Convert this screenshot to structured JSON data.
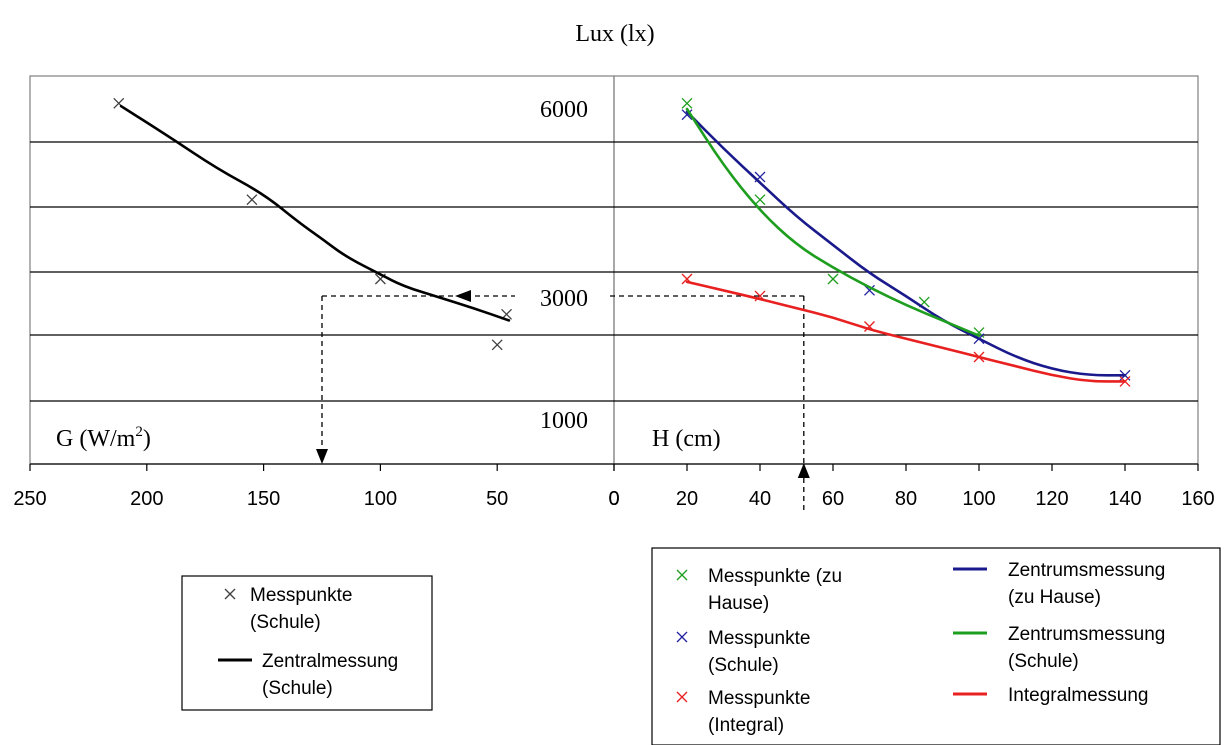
{
  "chart_data": {
    "type": "scatter",
    "title": "Lux (lx)",
    "y_value_labels": [
      "6000",
      "3000",
      "1000"
    ],
    "left_panel": {
      "axis_label": "G (W/m",
      "axis_label_superscript": "2",
      "axis_label_close": ")",
      "xlim": [
        250,
        0
      ],
      "x_ticks": [
        "250",
        "200",
        "150",
        "100",
        "50",
        "0"
      ],
      "series": [
        {
          "name": "Messpunkte (Schule)",
          "kind": "points",
          "color": "#404040",
          "points": [
            [
              212,
              6400
            ],
            [
              155,
              4700
            ],
            [
              100,
              3300
            ],
            [
              46,
              2700
            ],
            [
              50,
              2200
            ]
          ]
        },
        {
          "name": "Zentralmessung (Schule)",
          "kind": "line",
          "color": "#000000",
          "points": [
            [
              211,
              6350
            ],
            [
              190,
              5800
            ],
            [
              170,
              5250
            ],
            [
              150,
              4800
            ],
            [
              135,
              4300
            ],
            [
              125,
              4010
            ],
            [
              115,
              3700
            ],
            [
              100,
              3380
            ],
            [
              90,
              3170
            ],
            [
              75,
              2980
            ],
            [
              60,
              2800
            ],
            [
              45,
              2600
            ]
          ]
        }
      ],
      "legend": [
        {
          "label_lines": [
            "Messpunkte",
            "(Schule)"
          ],
          "kind": "points",
          "color": "#404040"
        },
        {
          "label_lines": [
            "Zentralmessung",
            "(Schule)"
          ],
          "kind": "line",
          "color": "#000000"
        }
      ]
    },
    "right_panel": {
      "axis_label": "H (cm)",
      "xlim": [
        0,
        160
      ],
      "x_ticks": [
        "0",
        "20",
        "40",
        "60",
        "80",
        "100",
        "120",
        "140",
        "160"
      ],
      "series": [
        {
          "name": "Messpunkte (zu Hause)",
          "kind": "points",
          "color": "#1e9e1e",
          "points": [
            [
              20,
              6400
            ],
            [
              40,
              4700
            ],
            [
              60,
              3300
            ],
            [
              85,
              2900
            ],
            [
              100,
              2400
            ]
          ]
        },
        {
          "name": "Messpunkte (Schule)",
          "kind": "points",
          "color": "#2020a0",
          "points": [
            [
              20,
              6200
            ],
            [
              40,
              5100
            ],
            [
              70,
              3100
            ],
            [
              100,
              2300
            ],
            [
              140,
              1700
            ]
          ]
        },
        {
          "name": "Messpunkte (Integral)",
          "kind": "points",
          "color": "#e82020",
          "points": [
            [
              20,
              3300
            ],
            [
              40,
              3000
            ],
            [
              70,
              2500
            ],
            [
              100,
              2000
            ],
            [
              140,
              1600
            ]
          ]
        },
        {
          "name": "Zentrumsmessung (zu Hause)",
          "kind": "line",
          "color": "#1a1a8c",
          "points": [
            [
              20,
              6250
            ],
            [
              30,
              5600
            ],
            [
              40,
              5000
            ],
            [
              50,
              4400
            ],
            [
              60,
              3900
            ],
            [
              70,
              3400
            ],
            [
              80,
              3000
            ],
            [
              90,
              2600
            ],
            [
              100,
              2300
            ],
            [
              110,
              2000
            ],
            [
              120,
              1800
            ],
            [
              130,
              1700
            ],
            [
              140,
              1700
            ]
          ]
        },
        {
          "name": "Zentrumsmessung (Schule)",
          "kind": "line",
          "color": "#1e9e1e",
          "points": [
            [
              20,
              6300
            ],
            [
              30,
              5300
            ],
            [
              40,
              4500
            ],
            [
              50,
              3900
            ],
            [
              60,
              3500
            ],
            [
              70,
              3150
            ],
            [
              80,
              2850
            ],
            [
              90,
              2600
            ],
            [
              100,
              2350
            ]
          ]
        },
        {
          "name": "Integralmessung",
          "kind": "line",
          "color": "#e82020",
          "points": [
            [
              20,
              3250
            ],
            [
              30,
              3100
            ],
            [
              40,
              2950
            ],
            [
              50,
              2800
            ],
            [
              60,
              2650
            ],
            [
              70,
              2450
            ],
            [
              80,
              2300
            ],
            [
              90,
              2150
            ],
            [
              100,
              2000
            ],
            [
              110,
              1850
            ],
            [
              120,
              1700
            ],
            [
              130,
              1600
            ],
            [
              140,
              1600
            ]
          ]
        }
      ],
      "legend": [
        {
          "label_lines": [
            "Messpunkte (zu",
            "Hause)"
          ],
          "kind": "points",
          "color": "#1e9e1e"
        },
        {
          "label_lines": [
            "Zentrumsmessung",
            "(zu Hause)"
          ],
          "kind": "line",
          "color": "#1a1a8c"
        },
        {
          "label_lines": [
            "Messpunkte",
            "(Schule)"
          ],
          "kind": "points",
          "color": "#2020a0"
        },
        {
          "label_lines": [
            "Zentrumsmessung",
            "(Schule)"
          ],
          "kind": "line",
          "color": "#1e9e1e"
        },
        {
          "label_lines": [
            "Messpunkte",
            "(Integral)"
          ],
          "kind": "points",
          "color": "#e82020"
        },
        {
          "label_lines": [
            "Integralmessung"
          ],
          "kind": "line",
          "color": "#e82020"
        }
      ]
    },
    "guide_lines": {
      "lux": 3000,
      "G": 125,
      "H": 52
    },
    "grid": true
  }
}
